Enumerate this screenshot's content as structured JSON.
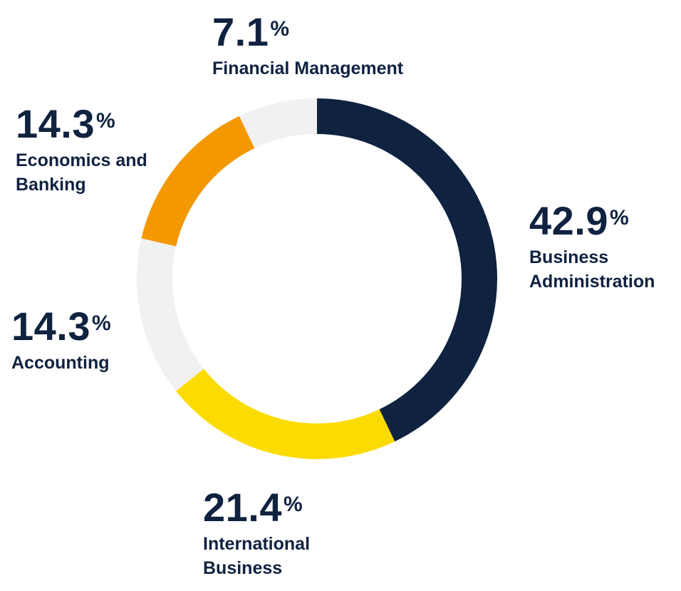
{
  "chart_data": {
    "type": "pie",
    "title": "",
    "donut": true,
    "slices": [
      {
        "label_lines": [
          "Business",
          "Administration"
        ],
        "value": 42.9,
        "display": "42.9",
        "color": "#0f2240"
      },
      {
        "label_lines": [
          "International",
          "Business"
        ],
        "value": 21.4,
        "display": "21.4",
        "color": "#fcdb00"
      },
      {
        "label_lines": [
          "Accounting"
        ],
        "value": 14.3,
        "display": "14.3",
        "color": "#f1f1f1"
      },
      {
        "label_lines": [
          "Economics and",
          "Banking"
        ],
        "value": 14.3,
        "display": "14.3",
        "color": "#f39800"
      },
      {
        "label_lines": [
          "Financial Management"
        ],
        "value": 7.1,
        "display": "7.1",
        "color": "#f1f1f1"
      }
    ],
    "percent_symbol": "%"
  }
}
